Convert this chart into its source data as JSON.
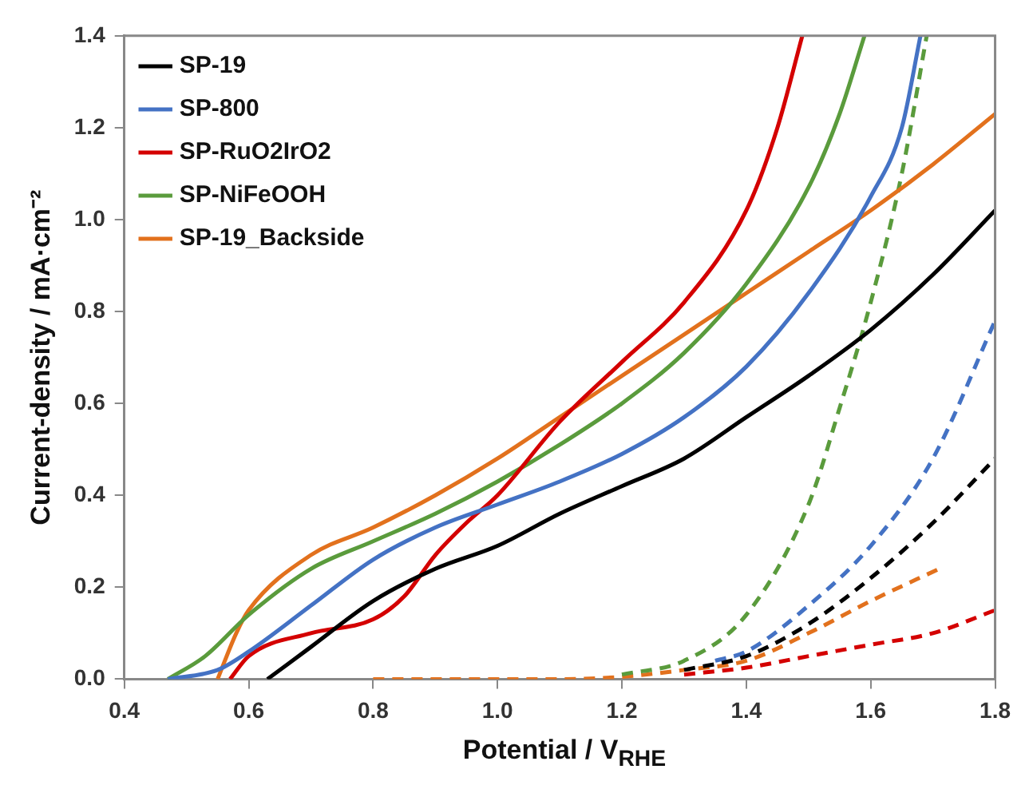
{
  "chart_data": {
    "type": "line",
    "xlabel": "Potential / V$_{RHE}$",
    "ylabel": "Current-density / mA·cm⁻²",
    "xlim": [
      0.4,
      1.8
    ],
    "xticks": [
      {
        "value": 0.4,
        "label": "0.4"
      },
      {
        "value": 0.6,
        "label": "0.6"
      },
      {
        "value": 0.8,
        "label": "0.8"
      },
      {
        "value": 1.0,
        "label": "1.0"
      },
      {
        "value": 1.2,
        "label": "1.2"
      },
      {
        "value": 1.4,
        "label": "1.4"
      },
      {
        "value": 1.6,
        "label": "1.6"
      },
      {
        "value": 1.8,
        "label": "1.8"
      }
    ],
    "ylim": [
      0,
      1.4
    ],
    "yticks": [
      {
        "value": 0,
        "label": "0.0"
      },
      {
        "value": 0.2,
        "label": "0.2"
      },
      {
        "value": 0.4,
        "label": "0.4"
      },
      {
        "value": 0.6,
        "label": "0.6"
      },
      {
        "value": 0.8,
        "label": "0.8"
      },
      {
        "value": 1.0,
        "label": "1.0"
      },
      {
        "value": 1.2,
        "label": "1.2"
      },
      {
        "value": 1.4,
        "label": "1.4"
      }
    ],
    "grid": false,
    "legend": "top left",
    "marker": "none",
    "series": [
      {
        "name": "SP-19",
        "color": "#000000",
        "line_style": "solid",
        "x": [
          0.63,
          0.7,
          0.8,
          0.9,
          1.0,
          1.1,
          1.2,
          1.3,
          1.4,
          1.5,
          1.6,
          1.7,
          1.8
        ],
        "values": [
          0,
          0.07,
          0.17,
          0.24,
          0.29,
          0.36,
          0.42,
          0.48,
          0.57,
          0.66,
          0.76,
          0.88,
          1.02
        ]
      },
      {
        "name": "SP-800",
        "color": "#4472c4",
        "line_style": "solid",
        "x": [
          0.47,
          0.55,
          0.6,
          0.7,
          0.8,
          0.9,
          1.0,
          1.1,
          1.2,
          1.3,
          1.4,
          1.5,
          1.6,
          1.65,
          1.68
        ],
        "values": [
          0,
          0.02,
          0.06,
          0.16,
          0.26,
          0.33,
          0.38,
          0.43,
          0.49,
          0.57,
          0.68,
          0.84,
          1.05,
          1.2,
          1.4
        ]
      },
      {
        "name": "SP-RuO2IrO2",
        "color": "#d40000",
        "line_style": "solid",
        "x": [
          0.57,
          0.6,
          0.7,
          0.8,
          0.85,
          0.9,
          0.95,
          1.0,
          1.1,
          1.2,
          1.3,
          1.4,
          1.45,
          1.49
        ],
        "values": [
          0,
          0.05,
          0.1,
          0.13,
          0.18,
          0.27,
          0.34,
          0.4,
          0.56,
          0.69,
          0.82,
          1.02,
          1.2,
          1.4
        ]
      },
      {
        "name": "SP-NiFeOOH",
        "color": "#5a9b3c",
        "line_style": "solid",
        "x": [
          0.47,
          0.53,
          0.6,
          0.7,
          0.8,
          0.9,
          1.0,
          1.1,
          1.2,
          1.3,
          1.4,
          1.5,
          1.55,
          1.59
        ],
        "values": [
          0,
          0.05,
          0.14,
          0.24,
          0.3,
          0.36,
          0.43,
          0.51,
          0.6,
          0.71,
          0.86,
          1.07,
          1.23,
          1.4
        ]
      },
      {
        "name": "SP-19_Backside",
        "color": "#e2711d",
        "line_style": "solid",
        "x": [
          0.55,
          0.58,
          0.6,
          0.7,
          0.8,
          0.9,
          1.0,
          1.1,
          1.2,
          1.3,
          1.4,
          1.5,
          1.6,
          1.7,
          1.8
        ],
        "values": [
          0,
          0.1,
          0.15,
          0.27,
          0.33,
          0.4,
          0.48,
          0.57,
          0.66,
          0.75,
          0.84,
          0.93,
          1.02,
          1.12,
          1.23
        ]
      },
      {
        "color": "#000000",
        "line_style": "dashed",
        "x": [
          1.3,
          1.4,
          1.5,
          1.6,
          1.7,
          1.8
        ],
        "values": [
          0.02,
          0.05,
          0.12,
          0.22,
          0.34,
          0.48
        ]
      },
      {
        "color": "#4472c4",
        "line_style": "dashed",
        "x": [
          1.35,
          1.4,
          1.5,
          1.6,
          1.7,
          1.8
        ],
        "values": [
          0.04,
          0.06,
          0.16,
          0.29,
          0.48,
          0.78
        ]
      },
      {
        "color": "#d40000",
        "line_style": "dashed",
        "x": [
          1.3,
          1.4,
          1.5,
          1.6,
          1.7,
          1.8
        ],
        "values": [
          0.01,
          0.025,
          0.05,
          0.075,
          0.1,
          0.15
        ]
      },
      {
        "color": "#5a9b3c",
        "line_style": "dashed",
        "x": [
          1.2,
          1.3,
          1.4,
          1.5,
          1.55,
          1.6,
          1.65,
          1.69
        ],
        "values": [
          0.01,
          0.04,
          0.14,
          0.38,
          0.59,
          0.82,
          1.1,
          1.4
        ]
      },
      {
        "color": "#e2711d",
        "line_style": "dashed",
        "x": [
          0.8,
          1.1,
          1.2,
          1.3,
          1.4,
          1.5,
          1.6,
          1.71
        ],
        "values": [
          0,
          0,
          0.005,
          0.02,
          0.04,
          0.1,
          0.17,
          0.24
        ]
      }
    ]
  }
}
